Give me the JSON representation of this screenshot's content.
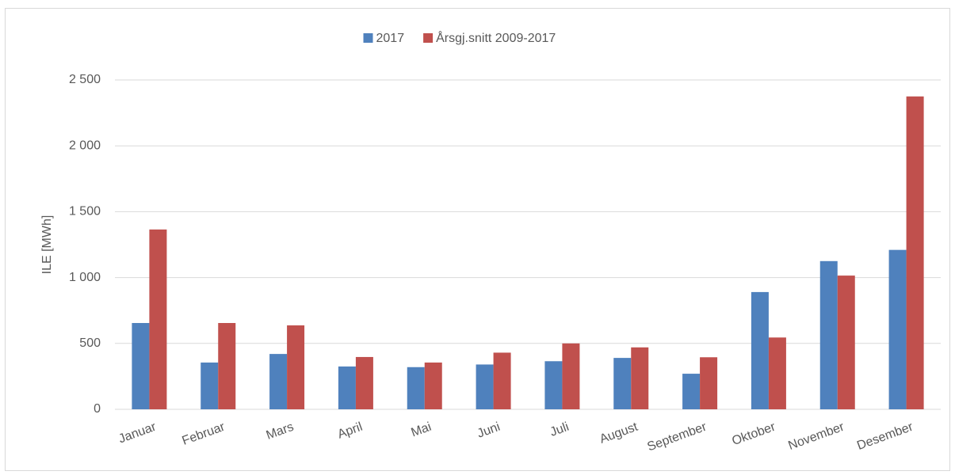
{
  "chart_data": {
    "type": "bar",
    "ylabel": "ILE [MWh]",
    "categories": [
      "Januar",
      "Februar",
      "Mars",
      "April",
      "Mai",
      "Juni",
      "Juli",
      "August",
      "September",
      "Oktober",
      "November",
      "Desember"
    ],
    "series": [
      {
        "name": "2017",
        "color": "#4f81bd",
        "values": [
          655,
          355,
          420,
          325,
          320,
          340,
          365,
          390,
          270,
          890,
          1125,
          1210
        ]
      },
      {
        "name": "Årsgj.snitt 2009-2017",
        "color": "#c0504d",
        "values": [
          1365,
          655,
          637,
          397,
          355,
          430,
          500,
          470,
          395,
          545,
          1015,
          2375
        ]
      }
    ],
    "ylim": [
      0,
      2500
    ],
    "yticks": [
      0,
      500,
      {
        "value": 1000,
        "label": "1 000"
      },
      {
        "value": 1500,
        "label": "1 500"
      },
      {
        "value": 2000,
        "label": "2 000"
      },
      {
        "value": 2500,
        "label": "2 500"
      }
    ],
    "grid": true,
    "legend": "top"
  }
}
